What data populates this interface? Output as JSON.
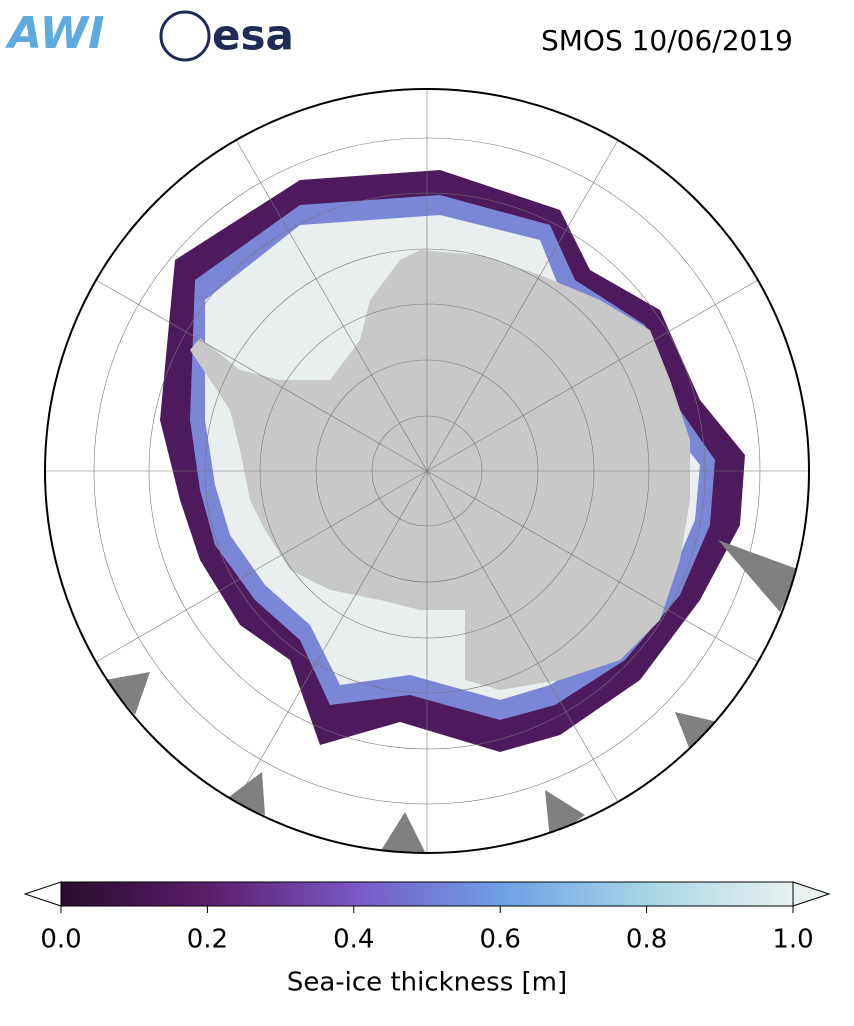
{
  "header": {
    "logos": [
      "AWI",
      "esa"
    ],
    "title": "SMOS 10/06/2019"
  },
  "colorbar": {
    "label": "Sea-ice thickness [m]",
    "range": [
      0,
      1
    ],
    "ticks": [
      {
        "value": 0,
        "label": "0.0"
      },
      0.2,
      0.4,
      0.6,
      0.8,
      {
        "value": 1,
        "label": "1.0"
      }
    ],
    "colors": [
      "#2a0d2e",
      "#5a1d6a",
      "#7a57c6",
      "#6d9fe6",
      "#a6d6e6",
      "#e9f0f0"
    ]
  }
}
